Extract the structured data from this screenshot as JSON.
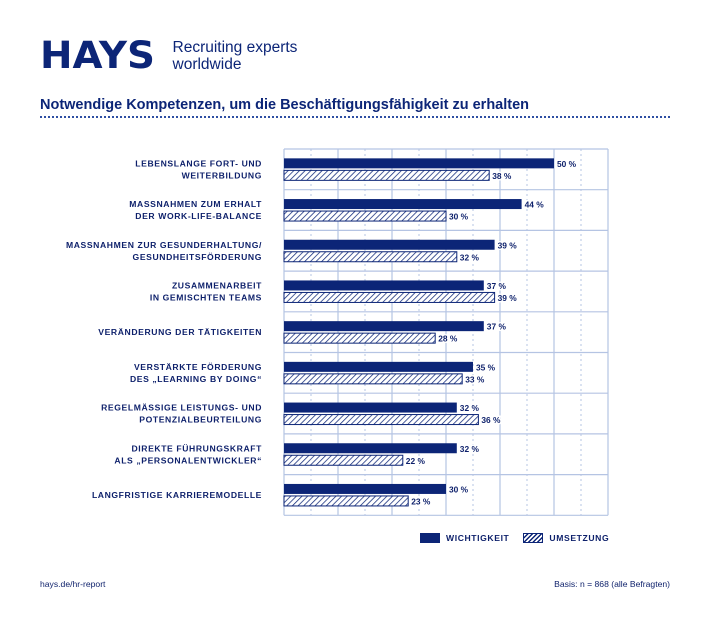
{
  "header": {
    "logo_text": "HAYS",
    "tagline_line1": "Recruiting experts",
    "tagline_line2": "worldwide"
  },
  "colors": {
    "primary": "#0c2577",
    "grid": "#b5c4e3"
  },
  "footer": {
    "left": "hays.de/hr-report",
    "right": "Basis: n = 868 (alle Befragten)"
  },
  "chart_data": {
    "type": "bar",
    "orientation": "horizontal",
    "title": "Notwendige Kompetenzen, um die Beschäftigungsfähigkeit zu erhalten",
    "unit": "%",
    "xlim": [
      0,
      60
    ],
    "grid": true,
    "legend_position": "bottom-right",
    "categories": [
      [
        "LEBENSLANGE FORT- UND",
        "WEITERBILDUNG"
      ],
      [
        "MASSNAHMEN ZUM ERHALT",
        "DER WORK-LIFE-BALANCE"
      ],
      [
        "MASSNAHMEN ZUR GESUNDERHALTUNG/",
        "GESUNDHEITSFÖRDERUNG"
      ],
      [
        "ZUSAMMENARBEIT",
        "IN GEMISCHTEN TEAMS"
      ],
      [
        "VERÄNDERUNG DER TÄTIGKEITEN"
      ],
      [
        "VERSTÄRKTE FÖRDERUNG",
        "DES „LEARNING BY DOING“"
      ],
      [
        "REGELMÄSSIGE LEISTUNGS- UND",
        "POTENZIALBEURTEILUNG"
      ],
      [
        "DIREKTE FÜHRUNGSKRAFT",
        "ALS „PERSONALENTWICKLER“"
      ],
      [
        "LANGFRISTIGE KARRIEREMODELLE"
      ]
    ],
    "series": [
      {
        "name": "WICHTIGKEIT",
        "style": "solid",
        "values": [
          50,
          44,
          39,
          37,
          37,
          35,
          32,
          32,
          30
        ]
      },
      {
        "name": "UMSETZUNG",
        "style": "hatched",
        "values": [
          38,
          30,
          32,
          39,
          28,
          33,
          36,
          22,
          23
        ]
      }
    ]
  }
}
